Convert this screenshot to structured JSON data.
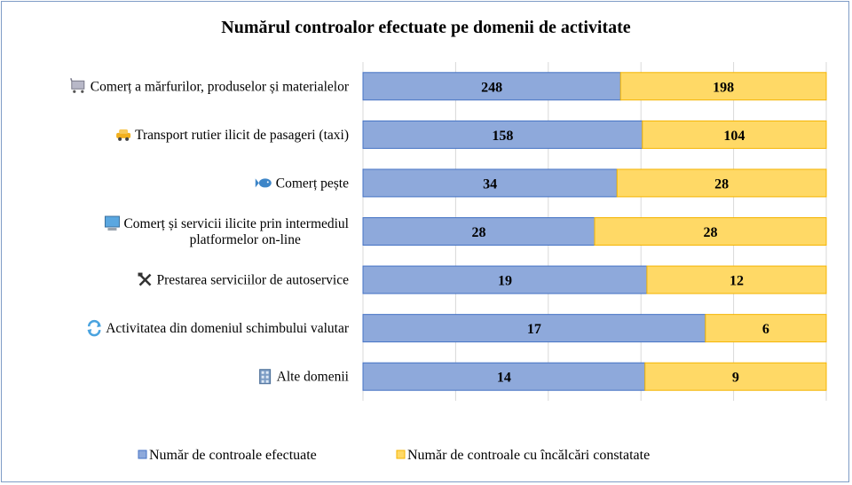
{
  "chart_data": {
    "type": "bar",
    "orientation": "horizontal",
    "stacked": "percent",
    "title": "Numărul controalor efectuate pe domenii de activitate",
    "categories": [
      {
        "label": [
          "Comerț a mărfurilor, produselor și materialelor"
        ],
        "icon": "cart-icon"
      },
      {
        "label": [
          "Transport rutier ilicit de pasageri (taxi)"
        ],
        "icon": "taxi-icon"
      },
      {
        "label": [
          "Comerț pește"
        ],
        "icon": "fish-icon"
      },
      {
        "label": [
          "Comerț și servicii ilicite prin intermediul",
          "platformelor on-line"
        ],
        "icon": "computer-icon"
      },
      {
        "label": [
          "Prestarea serviciilor de autoservice"
        ],
        "icon": "tools-icon"
      },
      {
        "label": [
          "Activitatea din domeniul schimbului valutar"
        ],
        "icon": "exchange-icon"
      },
      {
        "label": [
          "Alte domenii"
        ],
        "icon": "building-icon"
      }
    ],
    "series": [
      {
        "name": "Număr de controale efectuate",
        "color": "#8ea9db",
        "border": "#4472c4",
        "values": [
          248,
          158,
          34,
          28,
          19,
          17,
          14
        ]
      },
      {
        "name": "Număr de controale cu încălcări constatate",
        "color": "#ffd966",
        "border": "#f4b400",
        "values": [
          198,
          104,
          28,
          28,
          12,
          6,
          9
        ]
      }
    ],
    "legend_position": "bottom",
    "grid": true,
    "xlim": [
      0,
      100
    ]
  }
}
